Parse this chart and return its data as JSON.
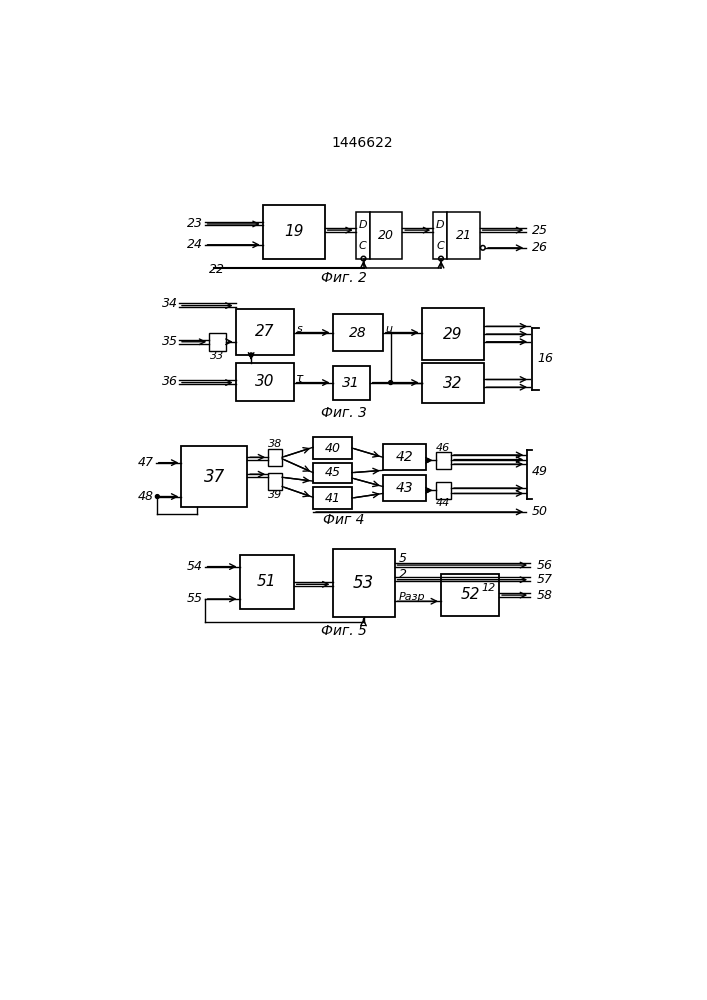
{
  "title": "1446622",
  "fig2_label": "Фиг. 2",
  "fig3_label": "Фиг. 3",
  "fig4_label": "Фиг 4",
  "fig5_label": "Фиг. 5",
  "bg_color": "#ffffff"
}
